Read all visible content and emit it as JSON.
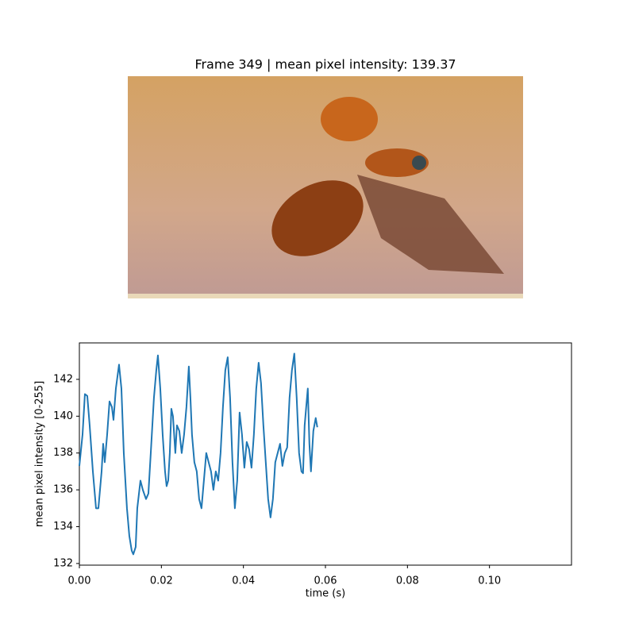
{
  "chart_data": {
    "type": "line",
    "title": "Frame 349 | mean pixel intensity: 139.37",
    "xlabel": "time (s)",
    "ylabel": "mean pixel intensity [0-255]",
    "x": [
      0,
      0.00077,
      0.00135,
      0.00193,
      0.00251,
      0.00329,
      0.00406,
      0.00464,
      0.00542,
      0.0058,
      0.00619,
      0.00677,
      0.00735,
      0.00793,
      0.00832,
      0.0089,
      0.00967,
      0.01025,
      0.01083,
      0.0116,
      0.01218,
      0.01276,
      0.01315,
      0.01373,
      0.01412,
      0.01489,
      0.01547,
      0.01625,
      0.01683,
      0.01741,
      0.01818,
      0.01876,
      0.01915,
      0.01973,
      0.02031,
      0.02089,
      0.02127,
      0.02166,
      0.02205,
      0.02243,
      0.02282,
      0.0234,
      0.02379,
      0.02437,
      0.02495,
      0.02553,
      0.02611,
      0.02669,
      0.02708,
      0.02746,
      0.02804,
      0.02862,
      0.0292,
      0.02978,
      0.03036,
      0.03094,
      0.03152,
      0.0321,
      0.03268,
      0.03326,
      0.03385,
      0.03443,
      0.03501,
      0.03559,
      0.03617,
      0.03675,
      0.03733,
      0.03791,
      0.03849,
      0.03907,
      0.03965,
      0.04023,
      0.04081,
      0.04139,
      0.04197,
      0.04255,
      0.04313,
      0.04371,
      0.04429,
      0.04487,
      0.04545,
      0.04603,
      0.04661,
      0.04719,
      0.04777,
      0.04835,
      0.04893,
      0.04951,
      0.05009,
      0.05067,
      0.05125,
      0.05183,
      0.05241,
      0.05299,
      0.05357,
      0.05415,
      0.05454,
      0.05493,
      0.05531,
      0.0557,
      0.05609,
      0.05647,
      0.05705,
      0.05763,
      0.05802
    ],
    "series": [
      {
        "name": "mean pixel intensity",
        "color": "#1f77b4",
        "values": [
          137.3,
          139,
          141.2,
          141.1,
          139.5,
          137,
          135,
          135,
          137,
          138.5,
          137.5,
          139,
          140.8,
          140.5,
          139.8,
          141.5,
          142.8,
          141.5,
          138,
          135,
          133.5,
          132.7,
          132.5,
          132.9,
          135,
          136.5,
          136,
          135.5,
          135.8,
          138,
          141,
          142.5,
          143.3,
          141.5,
          139,
          137,
          136.2,
          136.5,
          138,
          140.4,
          140,
          138,
          139.5,
          139.2,
          138,
          139,
          140.5,
          142.7,
          141,
          139,
          137.5,
          137,
          135.5,
          135,
          136.5,
          138,
          137.5,
          137,
          136,
          137,
          136.5,
          138,
          140.5,
          142.5,
          143.2,
          141,
          137.5,
          135,
          136.5,
          140.2,
          139,
          137.2,
          138.6,
          138.2,
          137.2,
          139,
          141.5,
          142.9,
          141.8,
          139.5,
          137.5,
          135.5,
          134.5,
          135.5,
          137.5,
          138,
          138.5,
          137.3,
          138,
          138.3,
          141,
          142.5,
          143.4,
          141,
          138,
          137,
          136.9,
          139.5,
          140.5,
          141.5,
          138.5,
          137,
          139.2,
          139.9,
          139.4
        ]
      }
    ],
    "xlim": [
      0,
      0.12
    ],
    "ylim": [
      131.91,
      143.98
    ],
    "xticks": [
      {
        "value": 0,
        "label": "0.00"
      },
      0.02,
      0.04,
      0.06,
      0.08,
      {
        "value": 0.1,
        "label": "0.10"
      }
    ],
    "yticks": [
      132,
      134,
      136,
      138,
      140,
      142
    ]
  }
}
